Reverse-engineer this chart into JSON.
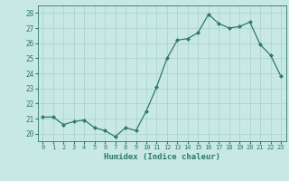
{
  "xlabel": "Humidex (Indice chaleur)",
  "x_values": [
    0,
    1,
    2,
    3,
    4,
    5,
    6,
    7,
    8,
    9,
    10,
    11,
    12,
    13,
    14,
    15,
    16,
    17,
    18,
    19,
    20,
    21,
    22,
    23
  ],
  "y_values": [
    21.1,
    21.1,
    20.6,
    20.8,
    20.9,
    20.4,
    20.2,
    19.8,
    20.4,
    20.2,
    21.5,
    23.1,
    25.0,
    26.2,
    26.3,
    26.7,
    27.9,
    27.3,
    27.0,
    27.1,
    27.4,
    25.9,
    25.2,
    23.8
  ],
  "line_color": "#2d7a6a",
  "marker_color": "#2d7a6a",
  "bg_color": "#c8e8e4",
  "grid_color": "#aed4d0",
  "tick_color": "#2d7a6a",
  "label_color": "#2d7a6a",
  "ylim": [
    19.5,
    28.5
  ],
  "yticks": [
    20,
    21,
    22,
    23,
    24,
    25,
    26,
    27,
    28
  ],
  "xticks": [
    0,
    1,
    2,
    3,
    4,
    5,
    6,
    7,
    8,
    9,
    10,
    11,
    12,
    13,
    14,
    15,
    16,
    17,
    18,
    19,
    20,
    21,
    22,
    23
  ]
}
